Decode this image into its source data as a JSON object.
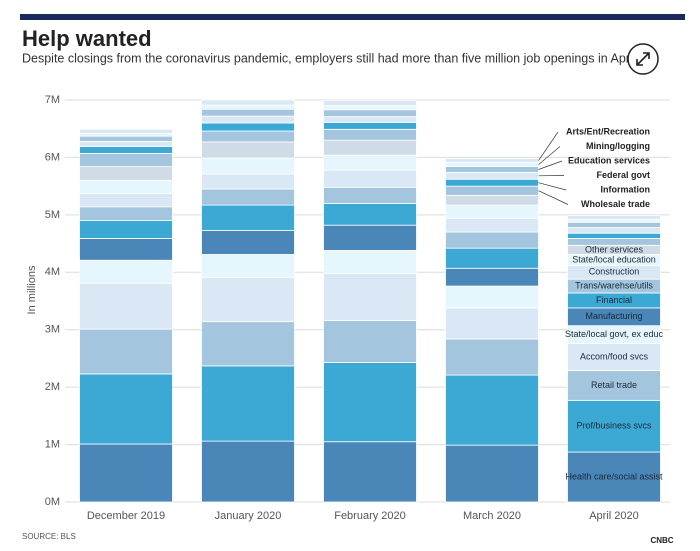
{
  "chart_data": {
    "type": "stacked_bar",
    "title": "Help wanted",
    "subtitle": "Despite closings from the coronavirus pandemic, employers still had more than five million job openings in April.",
    "y_label": "In millions",
    "source": "SOURCE: BLS",
    "logo": "CNBC",
    "categories": [
      "December 2019",
      "January 2020",
      "February 2020",
      "March 2020",
      "April 2020"
    ],
    "ylim": [
      0,
      7
    ],
    "yticks": [
      {
        "value": 0,
        "label": "0M"
      },
      {
        "value": 1,
        "label": "1M"
      },
      {
        "value": 2,
        "label": "2M"
      },
      {
        "value": 3,
        "label": "3M"
      },
      {
        "value": 4,
        "label": "4M"
      },
      {
        "value": 5,
        "label": "5M"
      },
      {
        "value": 6,
        "label": "6M"
      },
      {
        "value": 7,
        "label": "7M"
      }
    ],
    "grid": true,
    "series": [
      {
        "name": "Health care/social assist",
        "color": "#4a86b8",
        "values": [
          1.01,
          1.06,
          1.05,
          0.99,
          0.87
        ]
      },
      {
        "name": "Prof/business svcs",
        "color": "#3ba9d3",
        "values": [
          1.22,
          1.31,
          1.38,
          1.22,
          0.9
        ]
      },
      {
        "name": "Retail trade",
        "color": "#a4c5de",
        "values": [
          0.78,
          0.77,
          0.73,
          0.63,
          0.52
        ]
      },
      {
        "name": "Accom/food svcs",
        "color": "#dae8f5",
        "values": [
          0.8,
          0.77,
          0.82,
          0.54,
          0.47
        ]
      },
      {
        "name": "State/local govt, ex educ",
        "color": "#e5f7fc",
        "values": [
          0.4,
          0.4,
          0.4,
          0.38,
          0.31
        ]
      },
      {
        "name": "Manufacturing",
        "color": "#4a86b8",
        "values": [
          0.38,
          0.42,
          0.44,
          0.31,
          0.31
        ]
      },
      {
        "name": "Financial",
        "color": "#3ba9d3",
        "values": [
          0.31,
          0.44,
          0.38,
          0.35,
          0.26
        ]
      },
      {
        "name": "Trans/warehse/utils",
        "color": "#a4c5de",
        "values": [
          0.24,
          0.28,
          0.28,
          0.28,
          0.24
        ]
      },
      {
        "name": "Construction",
        "color": "#dae8f5",
        "values": [
          0.23,
          0.26,
          0.3,
          0.24,
          0.24
        ]
      },
      {
        "name": "State/local education",
        "color": "#e5f7fc",
        "values": [
          0.23,
          0.28,
          0.26,
          0.23,
          0.19
        ]
      },
      {
        "name": "Other services",
        "color": "#cfdbe6",
        "values": [
          0.24,
          0.28,
          0.26,
          0.17,
          0.16
        ]
      },
      {
        "name": "Wholesale trade",
        "color": "#a4c5de",
        "values": [
          0.23,
          0.19,
          0.19,
          0.16,
          0.12
        ]
      },
      {
        "name": "Information",
        "color": "#3ba9d3",
        "values": [
          0.12,
          0.14,
          0.12,
          0.12,
          0.09
        ]
      },
      {
        "name": "Federal govt",
        "color": "#dae8f5",
        "values": [
          0.09,
          0.12,
          0.1,
          0.12,
          0.1
        ]
      },
      {
        "name": "Education services",
        "color": "#a4c5de",
        "values": [
          0.09,
          0.12,
          0.12,
          0.1,
          0.09
        ]
      },
      {
        "name": "Mining/logging",
        "color": "#e5f7fc",
        "values": [
          0.05,
          0.07,
          0.07,
          0.07,
          0.05
        ]
      },
      {
        "name": "Arts/Ent/Recreation",
        "color": "#dae8f5",
        "values": [
          0.07,
          0.09,
          0.09,
          0.07,
          0.07
        ]
      }
    ]
  }
}
